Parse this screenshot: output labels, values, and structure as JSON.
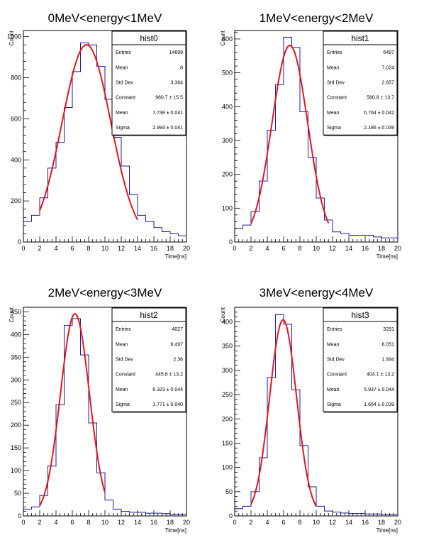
{
  "chart_data": [
    {
      "type": "histogram",
      "title": "0MeV<energy<1MeV",
      "xlabel": "Time[ns]",
      "ylabel": "Count",
      "xlim": [
        0,
        20
      ],
      "ylim": [
        0,
        1030
      ],
      "xticks": [
        0,
        2,
        4,
        6,
        8,
        10,
        12,
        14,
        16,
        18,
        20
      ],
      "yticks": [
        0,
        200,
        400,
        600,
        800,
        1000
      ],
      "bin_edges": [
        0,
        1,
        2,
        3,
        4,
        5,
        6,
        7,
        8,
        9,
        10,
        11,
        12,
        13,
        14,
        15,
        16,
        17,
        18,
        19,
        20
      ],
      "counts": [
        100,
        130,
        215,
        360,
        485,
        655,
        830,
        970,
        960,
        855,
        695,
        510,
        370,
        230,
        130,
        100,
        70,
        50,
        40,
        30
      ],
      "hist_color": "#1c1c9c",
      "fit": {
        "function": "gaus",
        "constant": 960.7,
        "mean": 7.738,
        "sigma": 2.993,
        "range": [
          2,
          14
        ],
        "color": "#e8141c"
      },
      "stats": {
        "name": "hist0",
        "rows": [
          {
            "label": "Entries",
            "value": "14699"
          },
          {
            "label": "Mean",
            "value": "8"
          },
          {
            "label": "Std Dev",
            "value": "3.364"
          },
          {
            "label": "Constant",
            "value": "960.7 ± 15.5"
          },
          {
            "label": "Mean",
            "value": "7.738 ± 0.041"
          },
          {
            "label": "Sigma",
            "value": "2.993 ± 0.041"
          }
        ]
      }
    },
    {
      "type": "histogram",
      "title": "1MeV<energy<2MeV",
      "xlabel": "Time[ns]",
      "ylabel": "Count",
      "xlim": [
        0,
        20
      ],
      "ylim": [
        0,
        625
      ],
      "xticks": [
        0,
        2,
        4,
        6,
        8,
        10,
        12,
        14,
        16,
        18,
        20
      ],
      "yticks": [
        0,
        100,
        200,
        300,
        400,
        500,
        600
      ],
      "bin_edges": [
        0,
        1,
        2,
        3,
        4,
        5,
        6,
        7,
        8,
        9,
        10,
        11,
        12,
        13,
        14,
        15,
        16,
        17,
        18,
        19,
        20
      ],
      "counts": [
        40,
        50,
        90,
        180,
        330,
        465,
        605,
        575,
        385,
        250,
        130,
        65,
        30,
        25,
        20,
        20,
        20,
        15,
        12,
        12
      ],
      "hist_color": "#1c1c9c",
      "fit": {
        "function": "gaus",
        "constant": 580.8,
        "mean": 6.764,
        "sigma": 2.186,
        "range": [
          2,
          11.5
        ],
        "color": "#e8141c"
      },
      "stats": {
        "name": "hist1",
        "rows": [
          {
            "label": "Entries",
            "value": "6497"
          },
          {
            "label": "Mean",
            "value": "7.024"
          },
          {
            "label": "Std Dev",
            "value": "2.857"
          },
          {
            "label": "Constant",
            "value": "580.8 ± 13.7"
          },
          {
            "label": "Mean",
            "value": "6.764 ± 0.042"
          },
          {
            "label": "Sigma",
            "value": "2.186 ± 0.039"
          }
        ]
      }
    },
    {
      "type": "histogram",
      "title": "2MeV<energy<3MeV",
      "xlabel": "Time[ns]",
      "ylabel": "Count",
      "xlim": [
        0,
        20
      ],
      "ylim": [
        0,
        460
      ],
      "xticks": [
        0,
        2,
        4,
        6,
        8,
        10,
        12,
        14,
        16,
        18,
        20
      ],
      "yticks": [
        0,
        50,
        100,
        150,
        200,
        250,
        300,
        350,
        400,
        450
      ],
      "bin_edges": [
        0,
        1,
        2,
        3,
        4,
        5,
        6,
        7,
        8,
        9,
        10,
        11,
        12,
        13,
        14,
        15,
        16,
        17,
        18,
        19,
        20
      ],
      "counts": [
        15,
        20,
        45,
        110,
        245,
        420,
        435,
        355,
        205,
        95,
        35,
        15,
        10,
        8,
        8,
        6,
        6,
        5,
        4,
        4
      ],
      "hist_color": "#1c1c9c",
      "fit": {
        "function": "gaus",
        "constant": 445.8,
        "mean": 6.323,
        "sigma": 1.771,
        "range": [
          2,
          10
        ],
        "color": "#e8141c"
      },
      "stats": {
        "name": "hist2",
        "rows": [
          {
            "label": "Entries",
            "value": "4027"
          },
          {
            "label": "Mean",
            "value": "6.497"
          },
          {
            "label": "Std Dev",
            "value": "2.36"
          },
          {
            "label": "Constant",
            "value": "445.8 ± 13.2"
          },
          {
            "label": "Mean",
            "value": "6.323 ± 0.044"
          },
          {
            "label": "Sigma",
            "value": "1.771 ± 0.040"
          }
        ]
      }
    },
    {
      "type": "histogram",
      "title": "3MeV<energy<4MeV",
      "xlabel": "Time[ns]",
      "ylabel": "Count",
      "xlim": [
        0,
        20
      ],
      "ylim": [
        0,
        430
      ],
      "xticks": [
        0,
        2,
        4,
        6,
        8,
        10,
        12,
        14,
        16,
        18,
        20
      ],
      "yticks": [
        0,
        50,
        100,
        150,
        200,
        250,
        300,
        350,
        400
      ],
      "bin_edges": [
        0,
        1,
        2,
        3,
        4,
        5,
        6,
        7,
        8,
        9,
        10,
        11,
        12,
        13,
        14,
        15,
        16,
        17,
        18,
        19,
        20
      ],
      "counts": [
        15,
        20,
        50,
        120,
        285,
        415,
        395,
        260,
        145,
        60,
        20,
        10,
        8,
        6,
        5,
        5,
        4,
        4,
        3,
        3
      ],
      "hist_color": "#1c1c9c",
      "fit": {
        "function": "gaus",
        "constant": 404.1,
        "mean": 5.937,
        "sigma": 1.654,
        "range": [
          2,
          10
        ],
        "color": "#e8141c"
      },
      "stats": {
        "name": "hist3",
        "rows": [
          {
            "label": "Entries",
            "value": "3291"
          },
          {
            "label": "Mean",
            "value": "6.051"
          },
          {
            "label": "Std Dev",
            "value": "1.994"
          },
          {
            "label": "Constant",
            "value": "404.1 ± 13.2"
          },
          {
            "label": "Mean",
            "value": "5.937 ± 0.044"
          },
          {
            "label": "Sigma",
            "value": "1.654 ± 0.039"
          }
        ]
      }
    }
  ]
}
